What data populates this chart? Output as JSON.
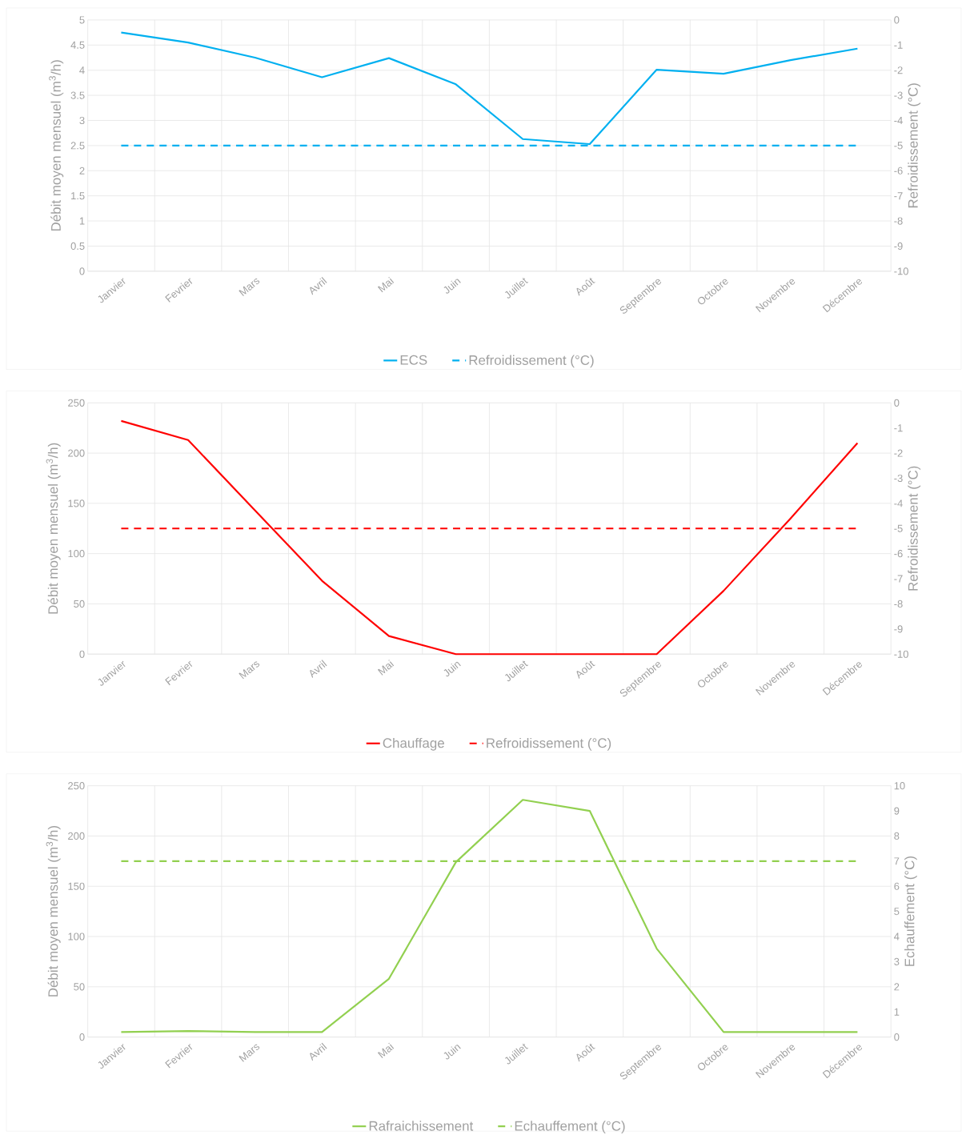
{
  "chart_data": [
    {
      "type": "line",
      "categories": [
        "Janvier",
        "Fevrier",
        "Mars",
        "Avril",
        "Mai",
        "Juin",
        "Juillet",
        "Août",
        "Septembre",
        "Octobre",
        "Novembre",
        "Décembre"
      ],
      "series": [
        {
          "name": "ECS",
          "color": "#00b0f0",
          "line_style": "solid",
          "values": [
            4.75,
            4.55,
            4.25,
            3.86,
            4.24,
            3.72,
            2.63,
            2.53,
            4.01,
            3.93,
            4.2,
            4.43
          ]
        },
        {
          "name": "Refroidissement (°C)",
          "color": "#00b0f0",
          "line_style": "dashed",
          "axis": "y2",
          "values": [
            -5,
            -5,
            -5,
            -5,
            -5,
            -5,
            -5,
            -5,
            -5,
            -5,
            -5,
            -5
          ]
        }
      ],
      "ylabel": "Débit moyen mensuel (m$^{3}$/h)",
      "y2label": "Refroidissement (°C)",
      "ylim": [
        0,
        5
      ],
      "yticks": [
        0,
        0.5,
        1,
        1.5,
        2,
        2.5,
        3,
        3.5,
        4,
        4.5,
        5
      ],
      "y2lim": [
        -10,
        0
      ],
      "y2ticks": [
        -10,
        -9,
        -8,
        -7,
        -6,
        -5,
        -4,
        -3,
        -2,
        -1,
        0
      ],
      "grid": true,
      "legend": "bottom"
    },
    {
      "type": "line",
      "categories": [
        "Janvier",
        "Fevrier",
        "Mars",
        "Avril",
        "Mai",
        "Juin",
        "Juillet",
        "Août",
        "Septembre",
        "Octobre",
        "Novembre",
        "Décembre"
      ],
      "series": [
        {
          "name": "Chauffage",
          "color": "#ff0000",
          "line_style": "solid",
          "values": [
            232,
            213,
            143,
            73,
            18,
            0,
            0,
            0,
            0,
            63,
            135,
            210
          ]
        },
        {
          "name": "Refroidissement (°C)",
          "color": "#ff0000",
          "line_style": "dashed",
          "axis": "y2",
          "values": [
            -5,
            -5,
            -5,
            -5,
            -5,
            -5,
            -5,
            -5,
            -5,
            -5,
            -5,
            -5
          ]
        }
      ],
      "ylabel": "Débit moyen mensuel (m$^{3}$/h)",
      "y2label": "Refroidissement (°C)",
      "ylim": [
        0,
        250
      ],
      "yticks": [
        0,
        50,
        100,
        150,
        200,
        250
      ],
      "y2lim": [
        -10,
        0
      ],
      "y2ticks": [
        -10,
        -9,
        -8,
        -7,
        -6,
        -5,
        -4,
        -3,
        -2,
        -1,
        0
      ],
      "grid": true,
      "legend": "bottom"
    },
    {
      "type": "line",
      "categories": [
        "Janvier",
        "Fevrier",
        "Mars",
        "Avril",
        "Mai",
        "Juin",
        "Juillet",
        "Août",
        "Septembre",
        "Octobre",
        "Novembre",
        "Décembre"
      ],
      "series": [
        {
          "name": "Rafraichissement",
          "color": "#92d050",
          "line_style": "solid",
          "values": [
            5,
            6,
            5,
            5,
            58,
            174,
            236,
            225,
            88,
            5,
            5,
            5
          ]
        },
        {
          "name": "Echauffement (°C)",
          "color": "#92d050",
          "line_style": "dashed",
          "axis": "y2",
          "values": [
            7,
            7,
            7,
            7,
            7,
            7,
            7,
            7,
            7,
            7,
            7,
            7
          ]
        }
      ],
      "ylabel": "Débit moyen mensuel (m$^{3}$/h)",
      "y2label": "Echauffement (°C)",
      "ylim": [
        0,
        250
      ],
      "yticks": [
        0,
        50,
        100,
        150,
        200,
        250
      ],
      "y2lim": [
        0,
        10
      ],
      "y2ticks": [
        0,
        1,
        2,
        3,
        4,
        5,
        6,
        7,
        8,
        9,
        10
      ],
      "grid": true,
      "legend": "bottom"
    }
  ]
}
